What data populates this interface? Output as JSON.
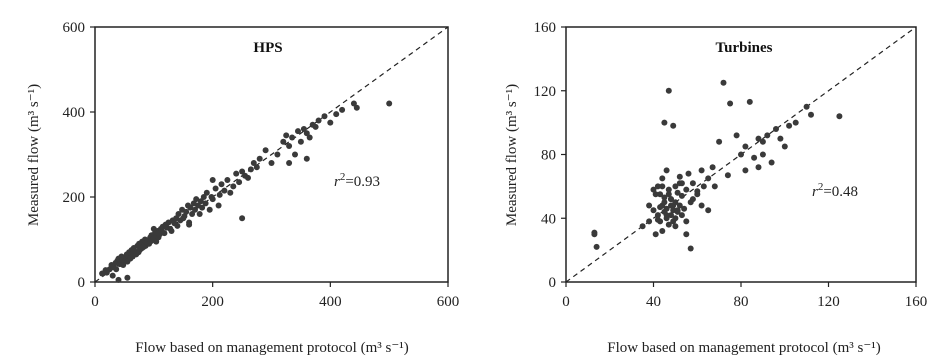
{
  "chart_data": [
    {
      "type": "scatter",
      "title": "HPS",
      "xlabel": "Flow based on management protocol (m³ s⁻¹)",
      "ylabel": "Measured flow (m³ s⁻¹)",
      "xlim": [
        0,
        600
      ],
      "ylim": [
        0,
        600
      ],
      "xticks": [
        "0",
        "200",
        "400",
        "600"
      ],
      "yticks": [
        "0",
        "200",
        "400",
        "600"
      ],
      "r2_label": "r²",
      "r2_value": "=0.93",
      "reference_line": "1:1 dashed",
      "x": [
        12,
        18,
        20,
        25,
        28,
        30,
        32,
        35,
        36,
        38,
        40,
        42,
        44,
        45,
        46,
        48,
        50,
        52,
        54,
        55,
        56,
        58,
        60,
        62,
        64,
        65,
        66,
        68,
        70,
        72,
        74,
        75,
        76,
        78,
        80,
        82,
        84,
        85,
        86,
        88,
        90,
        92,
        94,
        95,
        96,
        98,
        100,
        102,
        104,
        105,
        106,
        108,
        110,
        112,
        114,
        115,
        118,
        120,
        122,
        125,
        128,
        130,
        132,
        135,
        138,
        140,
        142,
        145,
        148,
        150,
        152,
        155,
        158,
        160,
        162,
        165,
        168,
        170,
        172,
        175,
        178,
        180,
        182,
        185,
        188,
        190,
        195,
        198,
        200,
        205,
        210,
        212,
        215,
        220,
        225,
        230,
        235,
        240,
        245,
        250,
        255,
        260,
        265,
        270,
        275,
        280,
        290,
        300,
        310,
        320,
        325,
        330,
        335,
        340,
        345,
        350,
        355,
        360,
        365,
        370,
        375,
        380,
        390,
        400,
        410,
        420,
        440,
        445,
        500,
        100,
        55,
        40,
        80,
        160,
        200,
        250,
        330,
        360
      ],
      "y": [
        20,
        28,
        22,
        30,
        40,
        15,
        35,
        45,
        30,
        50,
        55,
        42,
        48,
        60,
        52,
        40,
        58,
        50,
        65,
        48,
        62,
        70,
        55,
        75,
        60,
        68,
        80,
        72,
        65,
        85,
        70,
        90,
        75,
        78,
        95,
        82,
        88,
        100,
        85,
        92,
        98,
        90,
        105,
        96,
        110,
        100,
        102,
        115,
        95,
        108,
        120,
        105,
        112,
        125,
        118,
        130,
        115,
        135,
        128,
        140,
        125,
        120,
        145,
        138,
        150,
        132,
        160,
        145,
        170,
        150,
        155,
        165,
        180,
        140,
        175,
        160,
        185,
        170,
        195,
        180,
        160,
        190,
        175,
        200,
        185,
        210,
        170,
        200,
        195,
        220,
        180,
        205,
        230,
        215,
        240,
        210,
        225,
        255,
        235,
        260,
        250,
        245,
        265,
        280,
        270,
        290,
        310,
        280,
        300,
        330,
        345,
        320,
        340,
        300,
        355,
        330,
        360,
        350,
        340,
        370,
        365,
        380,
        390,
        375,
        395,
        405,
        420,
        410,
        420,
        125,
        10,
        5,
        80,
        135,
        240,
        150,
        280,
        290
      ]
    },
    {
      "type": "scatter",
      "title": "Turbines",
      "xlabel": "Flow based on management protocol (m³ s⁻¹)",
      "ylabel": "Measured flow (m³ s⁻¹)",
      "xlim": [
        0,
        160
      ],
      "ylim": [
        0,
        160
      ],
      "xticks": [
        "0",
        "40",
        "80",
        "120",
        "160"
      ],
      "yticks": [
        "0",
        "40",
        "80",
        "120",
        "160"
      ],
      "r2_label": "r²",
      "r2_value": "=0.48",
      "reference_line": "1:1 dashed",
      "x": [
        13,
        14,
        13,
        35,
        38,
        40,
        40,
        41,
        42,
        42,
        43,
        43,
        44,
        44,
        44,
        45,
        45,
        45,
        46,
        46,
        46,
        47,
        47,
        47,
        48,
        48,
        48,
        49,
        49,
        49,
        50,
        50,
        50,
        51,
        51,
        52,
        52,
        53,
        53,
        54,
        55,
        55,
        56,
        57,
        58,
        60,
        62,
        62,
        63,
        65,
        65,
        67,
        68,
        70,
        72,
        74,
        75,
        78,
        80,
        82,
        82,
        84,
        86,
        88,
        88,
        90,
        90,
        92,
        94,
        96,
        98,
        100,
        102,
        105,
        110,
        112,
        125,
        44,
        47,
        48,
        46,
        50,
        52,
        43,
        45,
        49,
        51,
        55,
        58,
        42,
        60,
        38,
        41,
        53,
        57
      ],
      "y": [
        30,
        22,
        31,
        35,
        38,
        45,
        58,
        30,
        42,
        60,
        55,
        38,
        48,
        65,
        32,
        44,
        100,
        50,
        40,
        70,
        46,
        55,
        36,
        120,
        42,
        48,
        52,
        98,
        45,
        38,
        60,
        40,
        50,
        44,
        56,
        48,
        62,
        42,
        54,
        46,
        58,
        38,
        68,
        50,
        62,
        55,
        48,
        70,
        60,
        65,
        45,
        72,
        60,
        88,
        125,
        67,
        112,
        92,
        80,
        70,
        85,
        113,
        78,
        90,
        72,
        88,
        80,
        92,
        75,
        96,
        90,
        85,
        98,
        100,
        110,
        105,
        104,
        60,
        58,
        52,
        42,
        35,
        66,
        47,
        53,
        48,
        45,
        30,
        52,
        39,
        57,
        48,
        55,
        62,
        21
      ],
      "_note_removed": ""
    }
  ]
}
